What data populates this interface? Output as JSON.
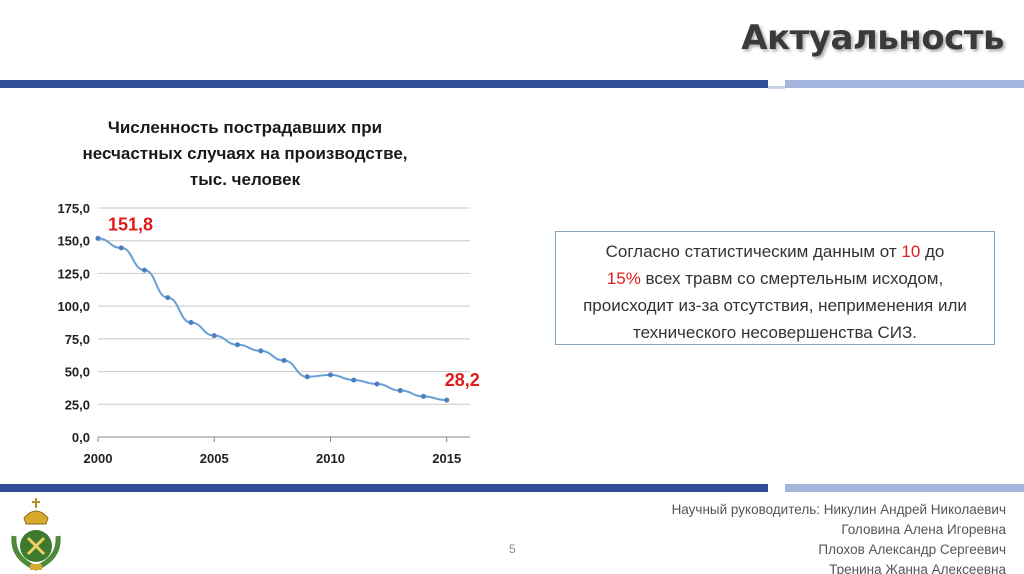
{
  "slide": {
    "title": "Актуальность",
    "page_number": "5",
    "info_text": {
      "part1": "Согласно статистическим данным от ",
      "red1": "10",
      "part2": " до",
      "red2": "15%",
      "part3": " всех травм со смертельным исходом, происходит из-за отсутствия, неприменения или технического несовершенства СИЗ."
    },
    "credits": [
      "Научный руководитель: Никулин Андрей Николаевич",
      "Головина Алена Игоревна",
      "Плохов Александр Сергеевич",
      "Тренина Жанна Алексеевна"
    ]
  },
  "colors": {
    "band_dark": "#2f4f9b",
    "band_light": "#a4b6de",
    "series_line": "#6a9fd4",
    "highlight_red": "#e01b1b"
  },
  "chart_data": {
    "type": "line",
    "title_lines": [
      "Численность пострадавших при",
      "несчастных случаях на производстве,",
      "тыс. человек"
    ],
    "x": [
      2000,
      2001,
      2002,
      2003,
      2004,
      2005,
      2006,
      2007,
      2008,
      2009,
      2010,
      2011,
      2012,
      2013,
      2014,
      2015
    ],
    "series": [
      {
        "values": [
          151.8,
          144.5,
          127.5,
          106.5,
          87.5,
          77.5,
          70.5,
          65.8,
          58.5,
          46.0,
          47.5,
          43.5,
          40.5,
          35.5,
          31.0,
          28.2
        ]
      }
    ],
    "xlim": [
      2000,
      2016
    ],
    "ylim": [
      0,
      175
    ],
    "x_ticks": [
      "2000",
      "2005",
      "2010",
      "2015"
    ],
    "y_ticks": [
      "0,0",
      "25,0",
      "50,0",
      "75,0",
      "100,0",
      "125,0",
      "150,0",
      "175,0"
    ],
    "data_labels": [
      {
        "index": 0,
        "text": "151,8"
      },
      {
        "index": 15,
        "text": "28,2"
      }
    ],
    "grid": true,
    "legend": "none"
  }
}
